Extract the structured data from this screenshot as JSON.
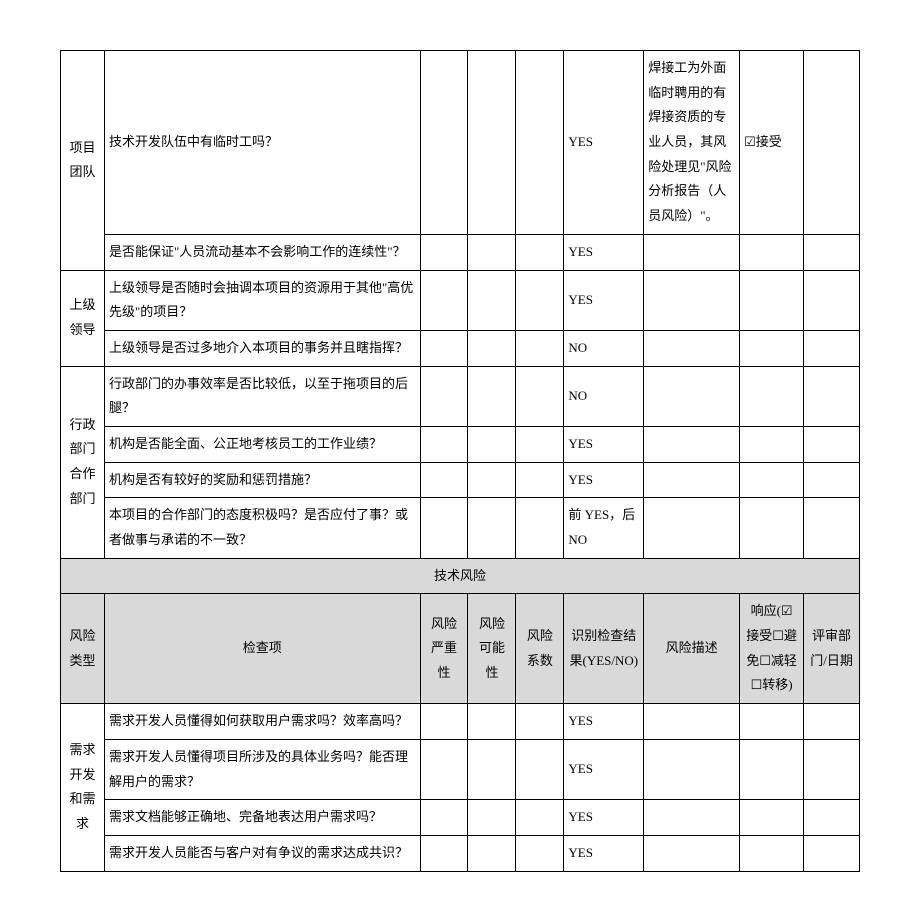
{
  "cols": {
    "c1_width": "5.5%",
    "c2_width": "39.5%",
    "c3_width": "6%",
    "c4_width": "6%",
    "c5_width": "6%",
    "c6_width": "10%",
    "c7_width": "12%",
    "c8_width": "8%",
    "c9_width": "7%"
  },
  "headers": {
    "risk_type": "风险类型",
    "check_item": "检查项",
    "severity": "风险严重性",
    "probability": "风险可能性",
    "coefficient": "风险系数",
    "result": "识别检查结果(YES/NO)",
    "description": "风险描述",
    "response": "响应(☑接受☐避免☐减轻☐转移)",
    "review": "评审部门/日期"
  },
  "section_tech": "技术风险",
  "groups": {
    "team": "项目团队",
    "leader": "上级领导",
    "admin_coop": "行政部门合作部门",
    "req": "需求开发和需求"
  },
  "rows": {
    "r1": {
      "q": "技术开发队伍中有临时工吗？",
      "res": "YES",
      "desc": "焊接工为外面临时聘用的有焊接资质的专业人员，其风险处理见\"风险分析报告（人员风险）\"。",
      "resp": "☑接受"
    },
    "r2": {
      "q": "是否能保证\"人员流动基本不会影响工作的连续性\"？",
      "res": "YES"
    },
    "r3": {
      "q": "上级领导是否随时会抽调本项目的资源用于其他\"高优先级\"的项目？",
      "res": "YES"
    },
    "r4": {
      "q": "上级领导是否过多地介入本项目的事务并且瞎指挥？",
      "res": "NO"
    },
    "r5": {
      "q": "行政部门的办事效率是否比较低，以至于拖项目的后腿？",
      "res": "NO"
    },
    "r6": {
      "q": "机构是否能全面、公正地考核员工的工作业绩？",
      "res": "YES"
    },
    "r7": {
      "q": "机构是否有较好的奖励和惩罚措施？",
      "res": "YES"
    },
    "r8": {
      "q": "本项目的合作部门的态度积极吗？是否应付了事？或者做事与承诺的不一致？",
      "res": "前 YES，后NO"
    },
    "r9": {
      "q": "需求开发人员懂得如何获取用户需求吗？效率高吗？",
      "res": "YES"
    },
    "r10": {
      "q": "需求开发人员懂得项目所涉及的具体业务吗？能否理解用户的需求？",
      "res": "YES"
    },
    "r11": {
      "q": "需求文档能够正确地、完备地表达用户需求吗？",
      "res": "YES"
    },
    "r12": {
      "q": "需求开发人员能否与客户对有争议的需求达成共识？",
      "res": "YES"
    }
  }
}
